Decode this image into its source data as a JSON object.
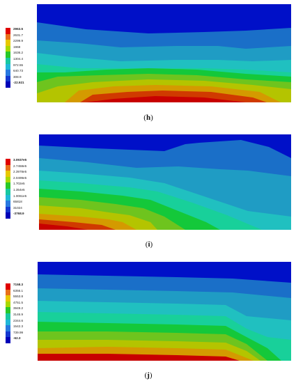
{
  "panels": [
    {
      "id": "h",
      "caption_open": "(",
      "caption_letter": "h",
      "caption_close": ")",
      "legend": [
        "2963.5",
        "2631.7",
        "2299.9",
        "1968",
        "1636.2",
        "1304.4",
        "972.55",
        "640.73",
        "308.9",
        "-22.921"
      ]
    },
    {
      "id": "i",
      "caption_open": "(",
      "caption_letter": "i",
      "caption_close": ")",
      "legend": [
        "3.0937e5",
        "2.7458e5",
        "2.3978e5",
        "2.0499e5",
        "1.702e5",
        "1.354e5",
        "1.0061e5",
        "65818",
        "31024",
        "-3768.9"
      ]
    },
    {
      "id": "j",
      "caption_open": "(",
      "caption_letter": "j",
      "caption_close": ")",
      "legend": [
        "7158.3",
        "6356.1",
        "5553.8",
        "4751.5",
        "3949.2",
        "3146.9",
        "2344.6",
        "1542.3",
        "739.99",
        "-62.3"
      ]
    }
  ],
  "colors": {
    "bands": [
      "#0010c8",
      "#1a6fc8",
      "#1f9cc4",
      "#20c0c0",
      "#18d09a",
      "#14c83a",
      "#6ec41e",
      "#b4c400",
      "#d49a00",
      "#d03a00",
      "#c80000"
    ],
    "legend": [
      "#e00000",
      "#e8701a",
      "#e8c800",
      "#a8d800",
      "#28c828",
      "#18c8a0",
      "#20b8d8",
      "#2878e0",
      "#1438d0",
      "#0000b8"
    ]
  }
}
